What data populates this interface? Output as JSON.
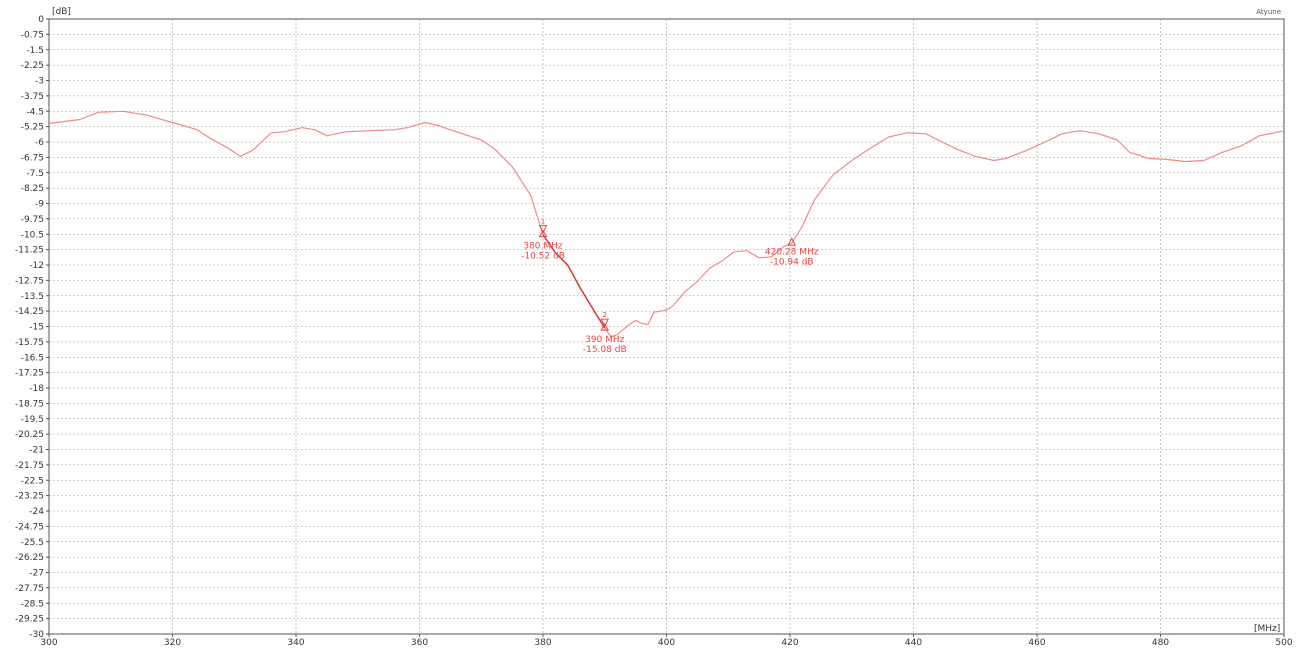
{
  "brand": "Atyune",
  "chart_data": {
    "type": "line",
    "title": "",
    "ylabel": "[dB]",
    "xlabel": "[MHz]",
    "xlim": [
      300,
      500
    ],
    "ylim": [
      -30,
      0
    ],
    "grid": true,
    "x_ticks": [
      "300",
      "320",
      "340",
      "360",
      "380",
      "400",
      "420",
      "440",
      "460",
      "480",
      "500"
    ],
    "y_ticks": [
      "0",
      "-0.75",
      "-1.5",
      "-2.25",
      "-3",
      "-3.75",
      "-4.5",
      "-5.25",
      "-6",
      "-6.75",
      "-7.5",
      "-8.25",
      "-9",
      "-9.75",
      "-10.5",
      "-11.25",
      "-12",
      "-12.75",
      "-13.5",
      "-14.25",
      "-15",
      "-15.75",
      "-16.5",
      "-17.25",
      "-18",
      "-18.75",
      "-19.5",
      "-20.25",
      "-21",
      "-21.75",
      "-22.5",
      "-23.25",
      "-24",
      "-24.75",
      "-25.5",
      "-26.25",
      "-27",
      "-27.75",
      "-28.5",
      "-29.25",
      "-30"
    ],
    "series": [
      {
        "color": "#f08a8a",
        "points": [
          [
            300,
            -5.1
          ],
          [
            305,
            -4.9
          ],
          [
            308,
            -4.55
          ],
          [
            312,
            -4.5
          ],
          [
            316,
            -4.7
          ],
          [
            320,
            -5.05
          ],
          [
            324,
            -5.4
          ],
          [
            326,
            -5.8
          ],
          [
            329,
            -6.3
          ],
          [
            331,
            -6.7
          ],
          [
            333,
            -6.4
          ],
          [
            336,
            -5.55
          ],
          [
            338,
            -5.5
          ],
          [
            341,
            -5.3
          ],
          [
            343,
            -5.4
          ],
          [
            345,
            -5.7
          ],
          [
            348,
            -5.5
          ],
          [
            352,
            -5.45
          ],
          [
            356,
            -5.4
          ],
          [
            358,
            -5.3
          ],
          [
            361,
            -5.05
          ],
          [
            363,
            -5.2
          ],
          [
            366,
            -5.5
          ],
          [
            370,
            -5.9
          ],
          [
            372,
            -6.3
          ],
          [
            375,
            -7.2
          ],
          [
            378,
            -8.6
          ],
          [
            380,
            -10.52
          ],
          [
            382,
            -11.4
          ],
          [
            384,
            -12.0
          ],
          [
            386,
            -13.1
          ],
          [
            388,
            -14.1
          ],
          [
            390,
            -15.08
          ],
          [
            391,
            -15.5
          ],
          [
            392,
            -15.4
          ],
          [
            394,
            -14.9
          ],
          [
            395,
            -14.7
          ],
          [
            396,
            -14.85
          ],
          [
            397,
            -14.9
          ],
          [
            398,
            -14.3
          ],
          [
            400,
            -14.2
          ],
          [
            401,
            -14.0
          ],
          [
            403,
            -13.3
          ],
          [
            405,
            -12.8
          ],
          [
            407,
            -12.15
          ],
          [
            409,
            -11.8
          ],
          [
            411,
            -11.35
          ],
          [
            413,
            -11.3
          ],
          [
            415,
            -11.65
          ],
          [
            417,
            -11.6
          ],
          [
            419,
            -11.1
          ],
          [
            420.28,
            -10.94
          ],
          [
            422,
            -10.1
          ],
          [
            424,
            -8.8
          ],
          [
            427,
            -7.6
          ],
          [
            430,
            -6.9
          ],
          [
            433,
            -6.3
          ],
          [
            436,
            -5.75
          ],
          [
            439,
            -5.55
          ],
          [
            442,
            -5.6
          ],
          [
            444,
            -5.9
          ],
          [
            447,
            -6.35
          ],
          [
            450,
            -6.7
          ],
          [
            453,
            -6.9
          ],
          [
            455,
            -6.8
          ],
          [
            458,
            -6.45
          ],
          [
            461,
            -6.05
          ],
          [
            464,
            -5.6
          ],
          [
            467,
            -5.45
          ],
          [
            470,
            -5.6
          ],
          [
            473,
            -5.9
          ],
          [
            475,
            -6.5
          ],
          [
            478,
            -6.8
          ],
          [
            481,
            -6.85
          ],
          [
            484,
            -6.95
          ],
          [
            487,
            -6.9
          ],
          [
            490,
            -6.5
          ],
          [
            493,
            -6.2
          ],
          [
            496,
            -5.7
          ],
          [
            500,
            -5.45
          ]
        ]
      }
    ],
    "markers": [
      {
        "id": "1",
        "x": 380,
        "y": -10.52,
        "freq_label": "380 MHz",
        "db_label": "-10.52 dB",
        "symbol": "down"
      },
      {
        "id": "2",
        "x": 390,
        "y": -15.08,
        "freq_label": "390 MHz",
        "db_label": "-15.08 dB",
        "symbol": "down"
      },
      {
        "id": "",
        "x": 420.28,
        "y": -10.94,
        "freq_label": "420.28 MHz",
        "db_label": "-10.94 dB",
        "symbol": "up"
      }
    ],
    "highlight_segment": [
      380,
      390
    ],
    "marker_color": "#ee4444"
  }
}
